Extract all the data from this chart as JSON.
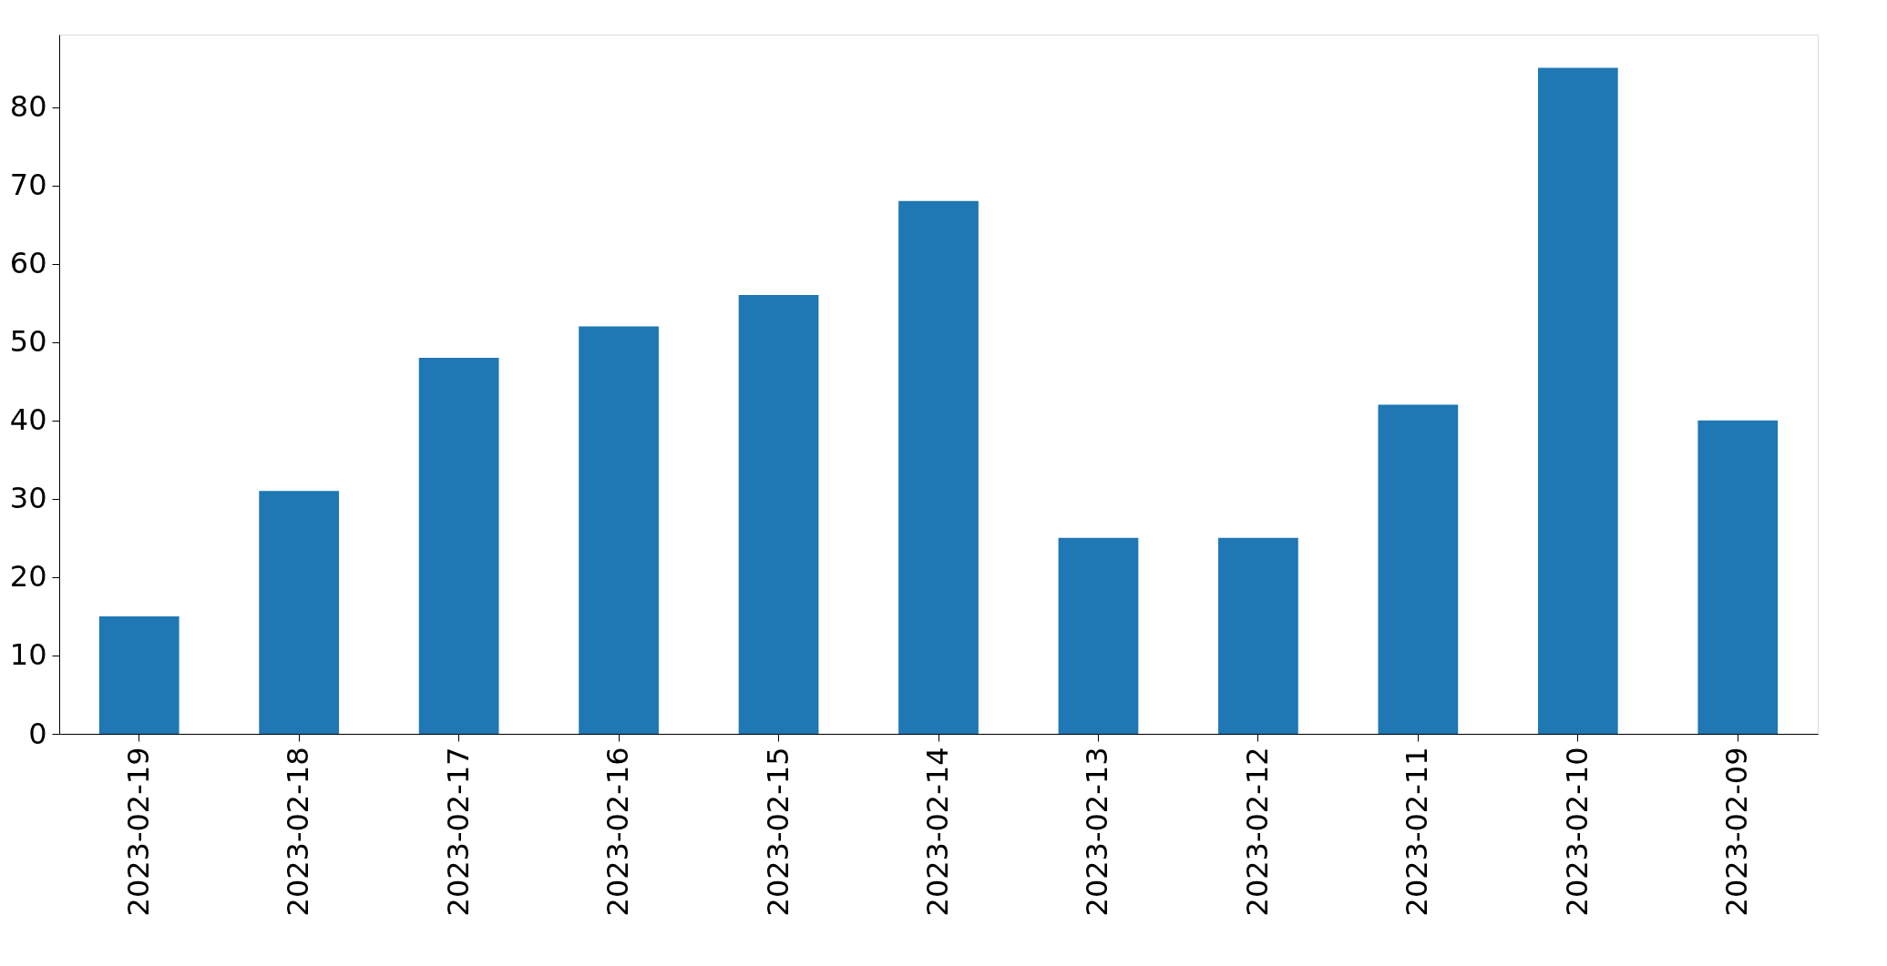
{
  "chart_data": {
    "type": "bar",
    "categories": [
      "2023-02-19",
      "2023-02-18",
      "2023-02-17",
      "2023-02-16",
      "2023-02-15",
      "2023-02-14",
      "2023-02-13",
      "2023-02-12",
      "2023-02-11",
      "2023-02-10",
      "2023-02-09"
    ],
    "values": [
      15,
      31,
      48,
      52,
      56,
      68,
      25,
      25,
      42,
      85,
      40
    ],
    "color": "#1f77b4",
    "ylim": [
      0,
      89.25
    ],
    "yticks": [
      0,
      10,
      20,
      30,
      40,
      50,
      60,
      70,
      80
    ],
    "grid": false
  }
}
